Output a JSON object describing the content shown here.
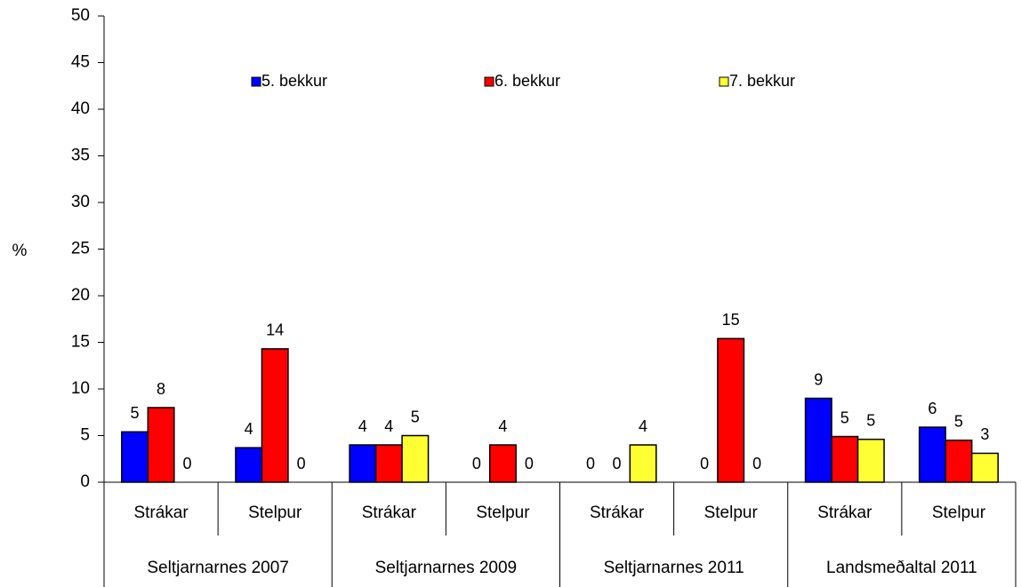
{
  "chart_data": {
    "type": "bar",
    "y_label": "%",
    "categories": [
      "Strákar",
      "Stelpur",
      "Strákar",
      "Stelpur",
      "Strákar",
      "Stelpur",
      "Strákar",
      "Stelpur"
    ],
    "groups": [
      "Seltjarnarnes 2007",
      "Seltjarnarnes 2009",
      "Seltjarnarnes 2011",
      "Landsmeðaltal 2011"
    ],
    "series": [
      {
        "name": "5. bekkur",
        "color": "#0000ff",
        "values": [
          5.4,
          3.7,
          4,
          0,
          0,
          0,
          9,
          5.9
        ],
        "value_labels": [
          "5",
          "4",
          "4",
          "0",
          "0",
          "0",
          "9",
          "6"
        ]
      },
      {
        "name": "6. bekkur",
        "color": "#ff0000",
        "values": [
          8,
          14.3,
          4,
          4,
          0,
          15.4,
          4.9,
          4.5
        ],
        "value_labels": [
          "8",
          "14",
          "4",
          "4",
          "0",
          "15",
          "5",
          "5"
        ]
      },
      {
        "name": "7. bekkur",
        "color": "#ffff33",
        "values": [
          0,
          0,
          5,
          0,
          4,
          0,
          4.6,
          3.1
        ],
        "value_labels": [
          "0",
          "0",
          "5",
          "0",
          "4",
          "0",
          "5",
          "3"
        ]
      }
    ],
    "ylim": [
      0,
      50
    ],
    "yticks": [
      0,
      5,
      10,
      15,
      20,
      25,
      30,
      35,
      40,
      45,
      50
    ],
    "legend": "top"
  }
}
